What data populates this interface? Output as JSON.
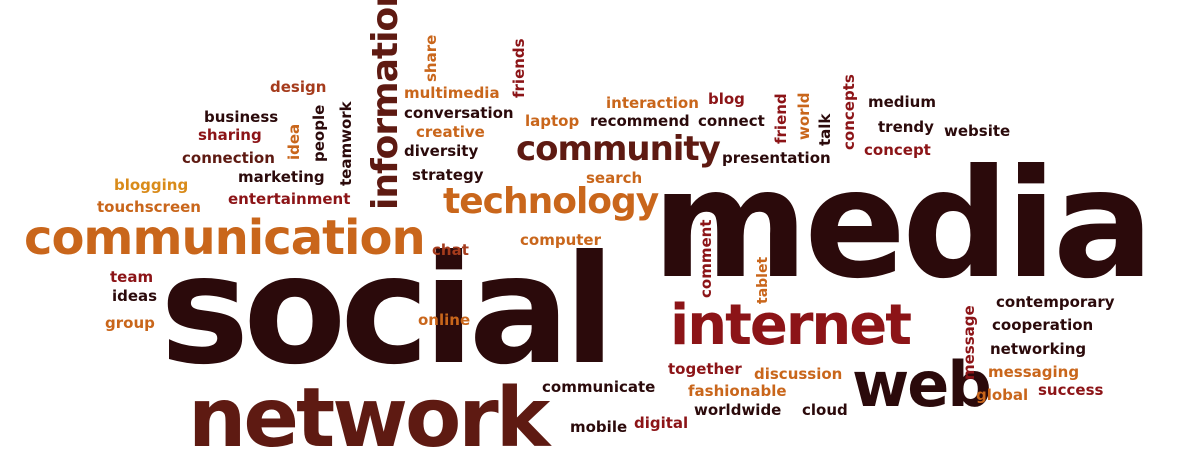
{
  "words": {
    "media": "media",
    "social": "social",
    "network": "network",
    "web": "web",
    "internet": "internet",
    "communication": "communication",
    "technology": "technology",
    "community": "community",
    "information": "information",
    "multimedia": "multimedia",
    "share": "share",
    "friends": "friends",
    "design": "design",
    "business": "business",
    "sharing": "sharing",
    "idea": "idea",
    "people": "people",
    "teamwork": "teamwork",
    "connection": "connection",
    "marketing": "marketing",
    "blogging": "blogging",
    "touchscreen": "touchscreen",
    "entertainment": "entertainment",
    "conversation": "conversation",
    "creative": "creative",
    "diversity": "diversity",
    "strategy": "strategy",
    "search": "search",
    "laptop": "laptop",
    "recommend": "recommend",
    "connect": "connect",
    "interaction": "interaction",
    "blog": "blog",
    "friend": "friend",
    "world": "world",
    "talk": "talk",
    "concepts": "concepts",
    "medium": "medium",
    "trendy": "trendy",
    "website": "website",
    "concept": "concept",
    "presentation": "presentation",
    "chat": "chat",
    "computer": "computer",
    "comment": "comment",
    "tablet": "tablet",
    "team": "team",
    "ideas": "ideas",
    "group": "group",
    "online": "online",
    "contemporary": "contemporary",
    "cooperation": "cooperation",
    "networking": "networking",
    "message": "message",
    "messaging": "messaging",
    "global": "global",
    "success": "success",
    "together": "together",
    "discussion": "discussion",
    "fashionable": "fashionable",
    "worldwide": "worldwide",
    "cloud": "cloud",
    "communicate": "communicate",
    "mobile": "mobile",
    "digital": "digital"
  },
  "colors": {
    "dark": "#2b0a0b",
    "red": "#8c1417",
    "orange": "#c9661b",
    "yellow": "#d98b1a",
    "brown": "#5e1a12"
  }
}
